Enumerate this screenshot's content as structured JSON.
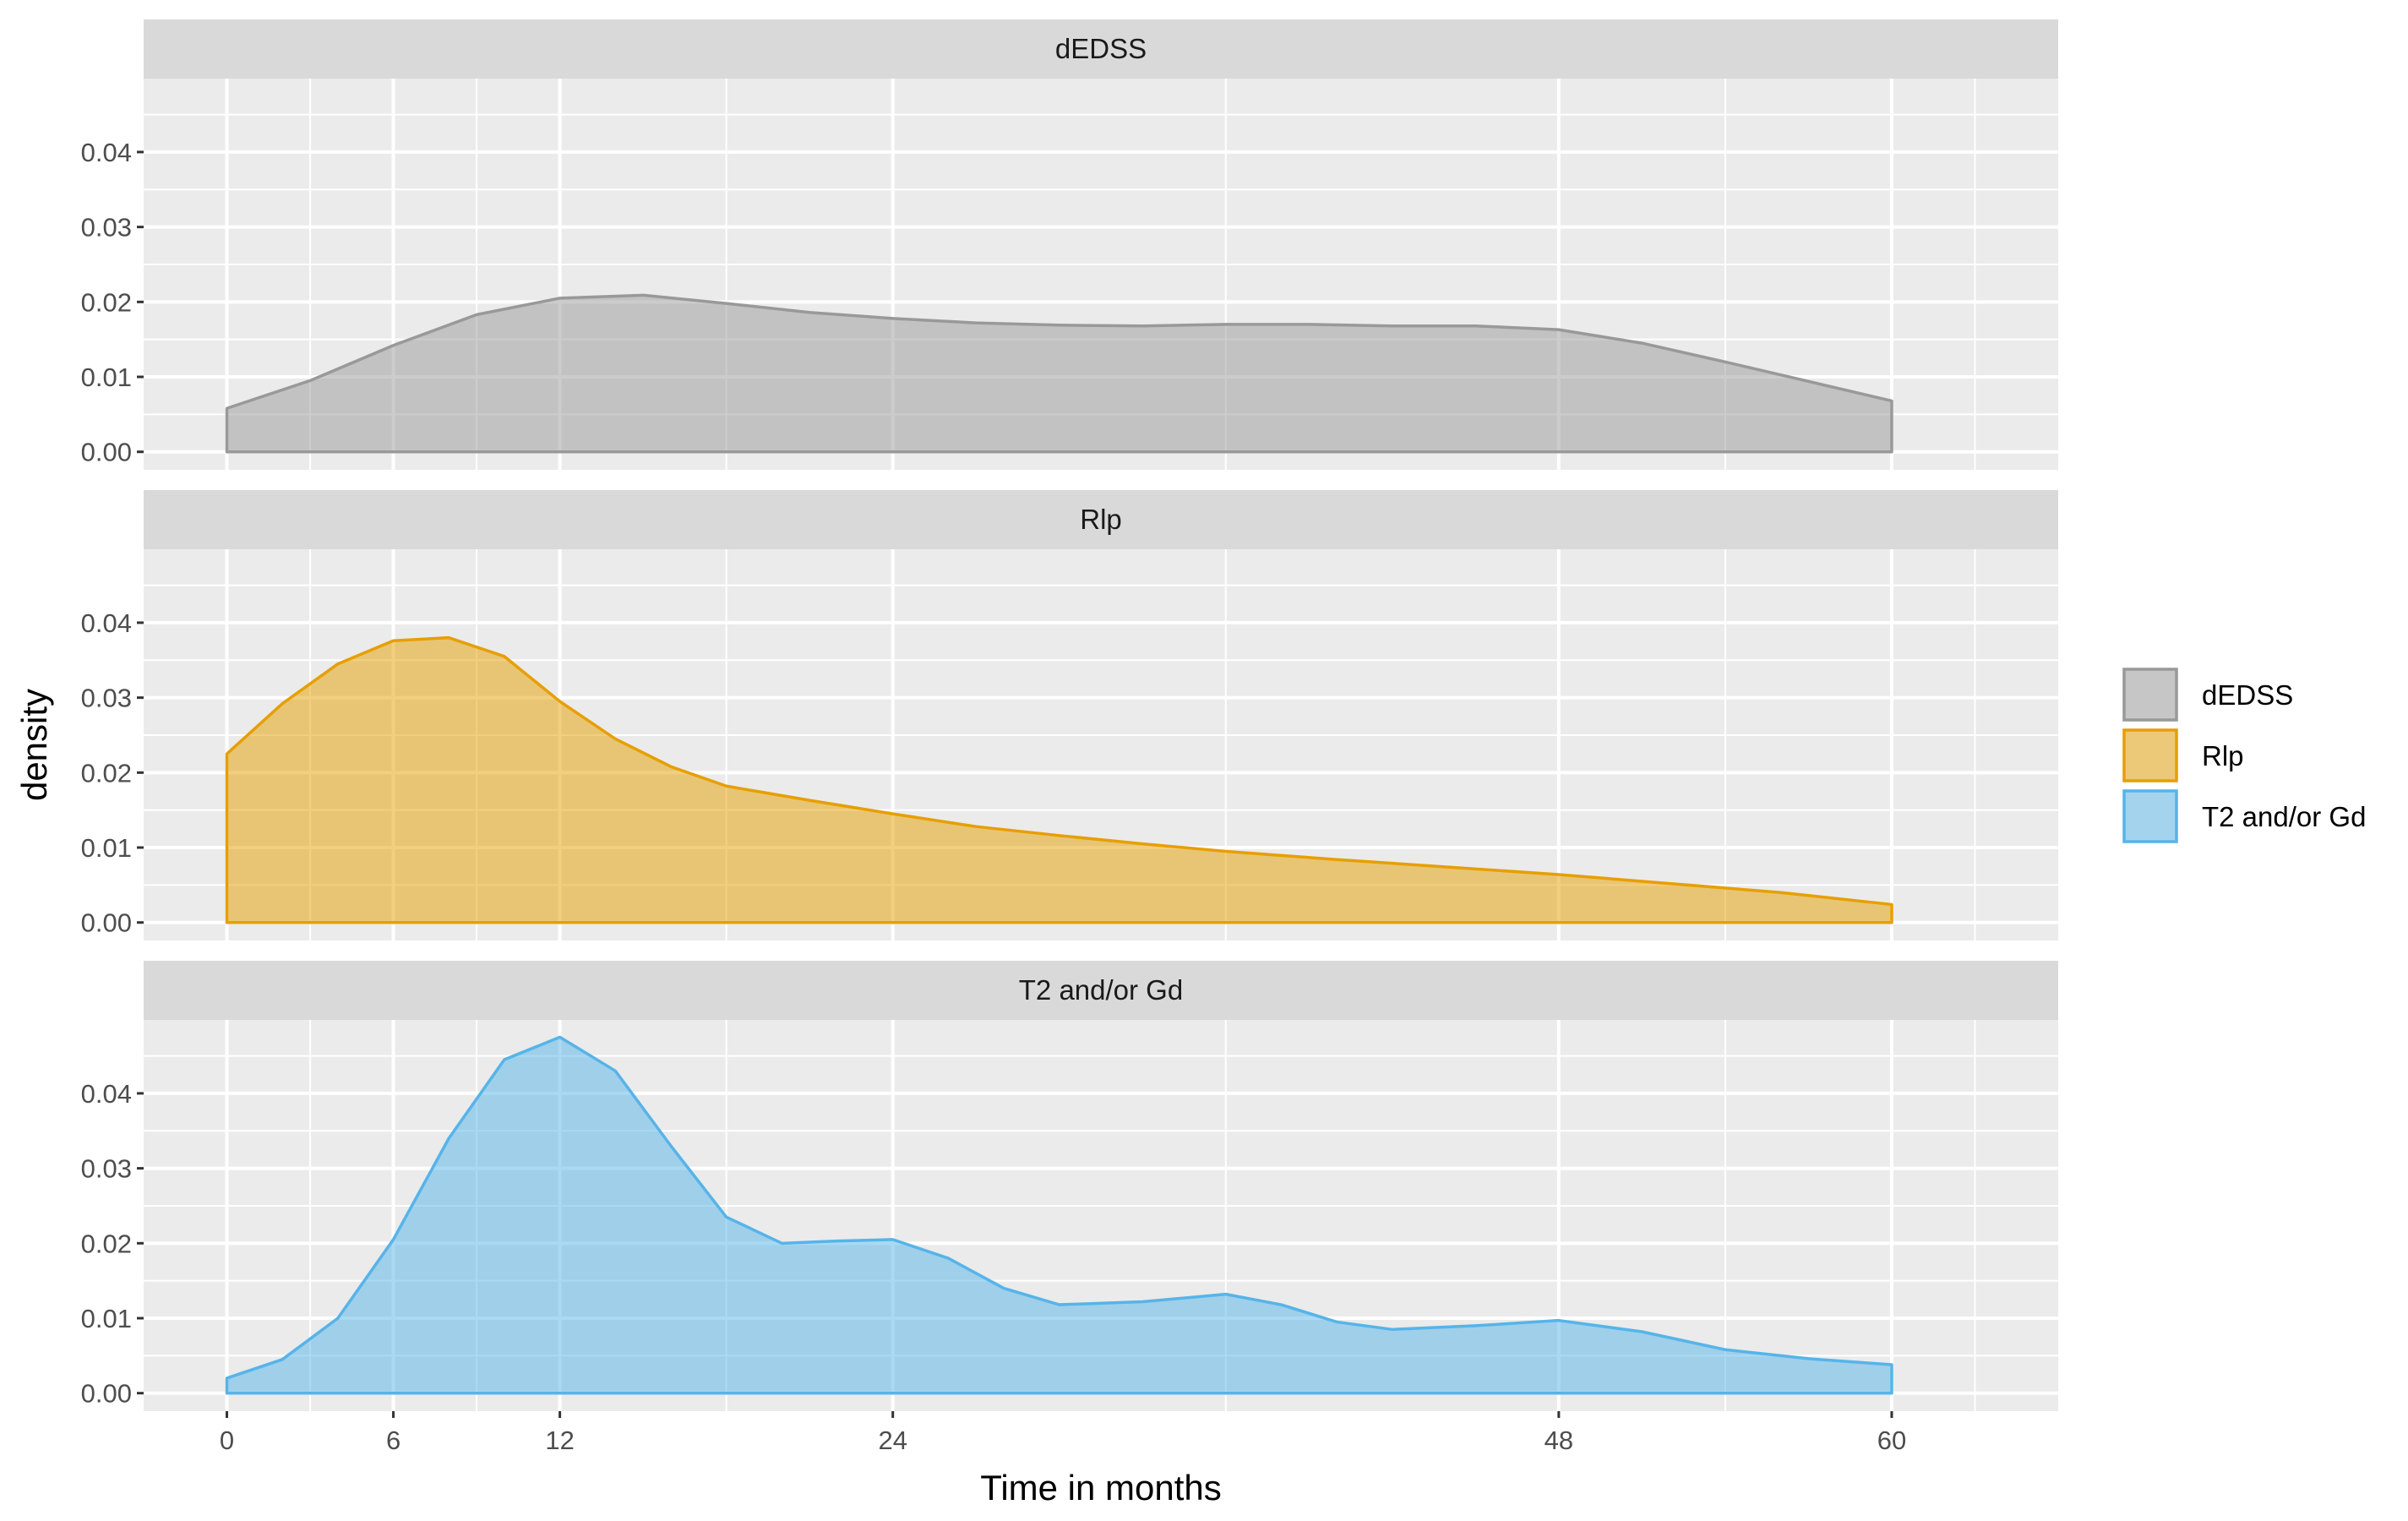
{
  "chart_data": {
    "type": "area",
    "subtype": "faceted density",
    "xlabel": "Time in months",
    "ylabel": "density",
    "x_breaks": [
      0,
      6,
      12,
      24,
      48,
      60
    ],
    "x_minor": [
      3,
      9,
      18,
      36,
      54,
      63
    ],
    "xlim": [
      -3,
      66
    ],
    "y_breaks": [
      0,
      0.01,
      0.02,
      0.03,
      0.04
    ],
    "y_break_labels": [
      "0.00",
      "0.01",
      "0.02",
      "0.03",
      "0.04"
    ],
    "ylim": [
      -0.0024,
      0.0498
    ],
    "grid": true,
    "legend_position": "right",
    "facets": [
      {
        "label": "dEDSS",
        "series": "dEDSS",
        "fill": "#999999",
        "points": [
          [
            0,
            0.0058
          ],
          [
            3,
            0.0095
          ],
          [
            6,
            0.0142
          ],
          [
            9,
            0.0183
          ],
          [
            12,
            0.0205
          ],
          [
            15,
            0.0209
          ],
          [
            18,
            0.0198
          ],
          [
            21,
            0.0186
          ],
          [
            24,
            0.0178
          ],
          [
            27,
            0.0172
          ],
          [
            30,
            0.0169
          ],
          [
            33,
            0.0168
          ],
          [
            36,
            0.017
          ],
          [
            39,
            0.017
          ],
          [
            42,
            0.0168
          ],
          [
            45,
            0.0168
          ],
          [
            48,
            0.0163
          ],
          [
            51,
            0.0145
          ],
          [
            54,
            0.012
          ],
          [
            57,
            0.0094
          ],
          [
            60,
            0.0068
          ]
        ]
      },
      {
        "label": "Rlp",
        "series": "Rlp",
        "fill": "#E69F00",
        "points": [
          [
            0,
            0.0225
          ],
          [
            2,
            0.0292
          ],
          [
            4,
            0.0345
          ],
          [
            6,
            0.0376
          ],
          [
            8,
            0.038
          ],
          [
            10,
            0.0355
          ],
          [
            12,
            0.0295
          ],
          [
            14,
            0.0245
          ],
          [
            16,
            0.0208
          ],
          [
            18,
            0.0182
          ],
          [
            21,
            0.0163
          ],
          [
            24,
            0.0145
          ],
          [
            27,
            0.0128
          ],
          [
            30,
            0.0116
          ],
          [
            33,
            0.0105
          ],
          [
            36,
            0.0095
          ],
          [
            40,
            0.0084
          ],
          [
            44,
            0.0074
          ],
          [
            48,
            0.0064
          ],
          [
            52,
            0.0052
          ],
          [
            56,
            0.004
          ],
          [
            60,
            0.0024
          ]
        ]
      },
      {
        "label": "T2 and/or Gd",
        "series": "T2 and/or Gd",
        "fill": "#56B4E9",
        "points": [
          [
            0,
            0.002
          ],
          [
            2,
            0.0045
          ],
          [
            4,
            0.01
          ],
          [
            6,
            0.0205
          ],
          [
            8,
            0.034
          ],
          [
            10,
            0.0445
          ],
          [
            12,
            0.0475
          ],
          [
            14,
            0.043
          ],
          [
            16,
            0.033
          ],
          [
            18,
            0.0235
          ],
          [
            20,
            0.02
          ],
          [
            22,
            0.0203
          ],
          [
            24,
            0.0205
          ],
          [
            26,
            0.018
          ],
          [
            28,
            0.014
          ],
          [
            30,
            0.0118
          ],
          [
            33,
            0.0122
          ],
          [
            36,
            0.0132
          ],
          [
            38,
            0.0118
          ],
          [
            40,
            0.0095
          ],
          [
            42,
            0.0085
          ],
          [
            45,
            0.009
          ],
          [
            48,
            0.0097
          ],
          [
            51,
            0.0082
          ],
          [
            54,
            0.0058
          ],
          [
            57,
            0.0046
          ],
          [
            60,
            0.0038
          ]
        ]
      }
    ],
    "legend": [
      {
        "label": "dEDSS",
        "fill": "#999999"
      },
      {
        "label": "Rlp",
        "fill": "#E69F00"
      },
      {
        "label": "T2 and/or Gd",
        "fill": "#56B4E9"
      }
    ]
  }
}
